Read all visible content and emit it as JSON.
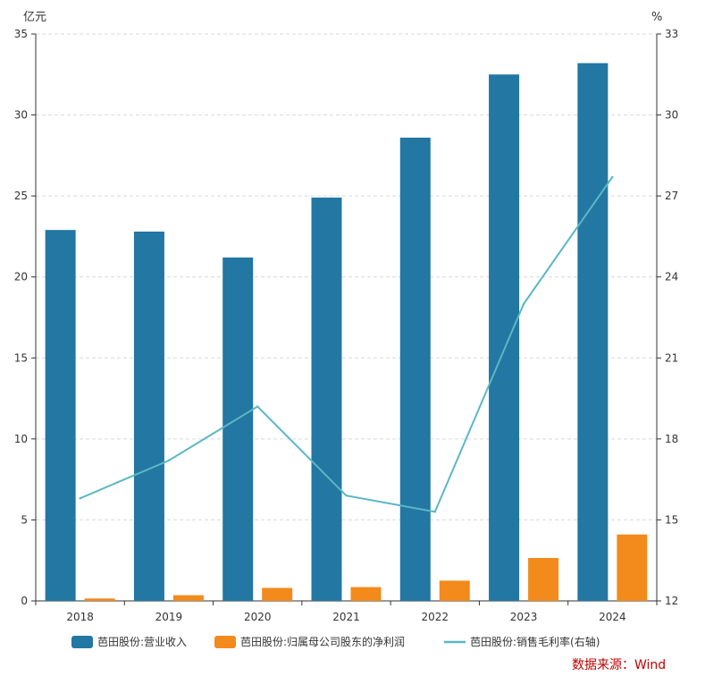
{
  "chart_data": {
    "type": "bar",
    "categories": [
      "2018",
      "2019",
      "2020",
      "2021",
      "2022",
      "2023",
      "2024"
    ],
    "series": [
      {
        "name": "芭田股份:营业收入",
        "type": "bar",
        "axis": "left",
        "color": "#2277a3",
        "values": [
          22.9,
          22.8,
          21.2,
          24.9,
          28.6,
          32.5,
          33.2
        ]
      },
      {
        "name": "芭田股份:归属母公司股东的净利润",
        "type": "bar",
        "axis": "left",
        "color": "#f28a1c",
        "values": [
          0.15,
          0.35,
          0.8,
          0.85,
          1.25,
          2.65,
          4.1
        ]
      },
      {
        "name": "芭田股份:销售毛利率(右轴)",
        "type": "line",
        "axis": "right",
        "color": "#5bb7c4",
        "values": [
          15.8,
          17.2,
          19.2,
          15.9,
          15.3,
          23.0,
          27.7
        ]
      }
    ],
    "left_axis": {
      "unit": "亿元",
      "ylim": [
        0,
        35
      ],
      "ticks": [
        0,
        5,
        10,
        15,
        20,
        25,
        30,
        35
      ]
    },
    "right_axis": {
      "unit": "%",
      "ylim": [
        12,
        33
      ],
      "ticks": [
        12,
        15,
        18,
        21,
        24,
        27,
        30,
        33
      ]
    },
    "grid": true,
    "legend_position": "bottom-center",
    "source": "数据来源：Wind",
    "source_color": "#c00000"
  }
}
